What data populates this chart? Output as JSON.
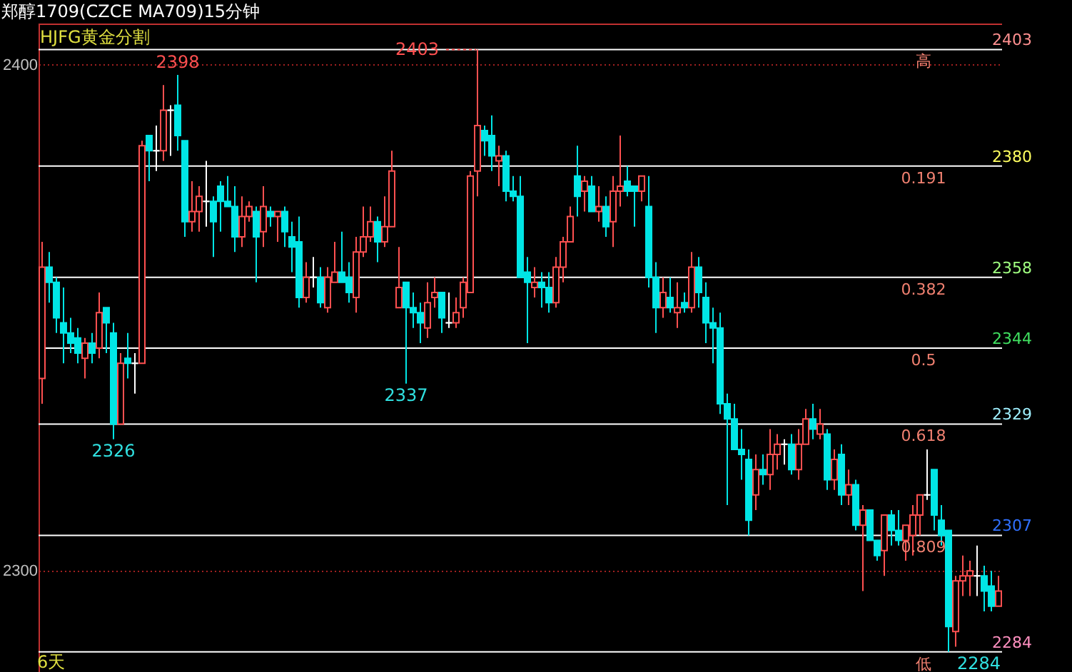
{
  "chart_data": {
    "type": "candlestick",
    "title": "郑醇1709(CZCE MA709)15分钟",
    "subtitle": "HJFG黄金分割",
    "categories": [
      null,
      null,
      null,
      null,
      null,
      null,
      null,
      null,
      null,
      null,
      null,
      null,
      null,
      null,
      null,
      null,
      null,
      null,
      null,
      null,
      null,
      null,
      null,
      null,
      null,
      null,
      null,
      null,
      null,
      null,
      null,
      null,
      null,
      null,
      null,
      null,
      null,
      null,
      null,
      null,
      null,
      null,
      null,
      null,
      null,
      null,
      null,
      null,
      null,
      null,
      null,
      null,
      null,
      null,
      null,
      null,
      null,
      null,
      null,
      null,
      null,
      null,
      null,
      null,
      null,
      null,
      null,
      null,
      null,
      null,
      null,
      null,
      null,
      null,
      null,
      null,
      null,
      null,
      null,
      null,
      null,
      null,
      null,
      null,
      null,
      null,
      null,
      null,
      null,
      null,
      null,
      null,
      null,
      null,
      null,
      null,
      null,
      null,
      null,
      null,
      null,
      null,
      null,
      null,
      null,
      null,
      null,
      null,
      null,
      null,
      null,
      null,
      null,
      null,
      null,
      null,
      null,
      null,
      null,
      null,
      null,
      null,
      null,
      null,
      null,
      null,
      null,
      null,
      null,
      null,
      null,
      null,
      null,
      null,
      null
    ],
    "ohlc": [
      [
        2338,
        2365,
        2333,
        2360
      ],
      [
        2360,
        2363,
        2353,
        2357
      ],
      [
        2357,
        2358,
        2347,
        2350
      ],
      [
        2349,
        2356,
        2341,
        2347
      ],
      [
        2347,
        2350,
        2343,
        2345
      ],
      [
        2346,
        2348,
        2341,
        2343
      ],
      [
        2342,
        2346,
        2338,
        2345
      ],
      [
        2345,
        2347,
        2341,
        2343
      ],
      [
        2344,
        2355,
        2342,
        2351
      ],
      [
        2352,
        2352,
        2343,
        2349
      ],
      [
        2347,
        2349,
        2326,
        2329
      ],
      [
        2329,
        2343,
        2329,
        2341
      ],
      [
        2342,
        2347,
        2338,
        2341
      ],
      [
        2341,
        2343,
        2335,
        2341
      ],
      [
        2341,
        2385,
        2341,
        2384
      ],
      [
        2386,
        2386,
        2377,
        2383
      ],
      [
        2383,
        2388,
        2379,
        2383
      ],
      [
        2383,
        2396,
        2381,
        2391
      ],
      [
        2391,
        2392,
        2382,
        2391
      ],
      [
        2392,
        2398,
        2383,
        2386
      ],
      [
        2385,
        2385,
        2366,
        2369
      ],
      [
        2369,
        2377,
        2367,
        2371
      ],
      [
        2371,
        2376,
        2367,
        2374
      ],
      [
        2373,
        2381,
        2368,
        2373
      ],
      [
        2373,
        2374,
        2362,
        2369
      ],
      [
        2376,
        2377,
        2367,
        2373
      ],
      [
        2373,
        2378,
        2372,
        2372
      ],
      [
        2372,
        2376,
        2363,
        2366
      ],
      [
        2366,
        2374,
        2364,
        2370
      ],
      [
        2370,
        2373,
        2369,
        2372
      ],
      [
        2371,
        2372,
        2357,
        2366
      ],
      [
        2367,
        2376,
        2364,
        2372
      ],
      [
        2371,
        2372,
        2368,
        2370
      ],
      [
        2370,
        2371,
        2365,
        2371
      ],
      [
        2371,
        2372,
        2364,
        2367
      ],
      [
        2366,
        2369,
        2359,
        2364
      ],
      [
        2365,
        2370,
        2352,
        2354
      ],
      [
        2354,
        2361,
        2353,
        2358
      ],
      [
        2358,
        2362,
        2356,
        2358
      ],
      [
        2358,
        2360,
        2352,
        2353
      ],
      [
        2352,
        2360,
        2351,
        2358
      ],
      [
        2357,
        2365,
        2357,
        2359
      ],
      [
        2359,
        2367,
        2357,
        2357
      ],
      [
        2358,
        2361,
        2353,
        2355
      ],
      [
        2354,
        2366,
        2351,
        2363
      ],
      [
        2363,
        2372,
        2362,
        2366
      ],
      [
        2366,
        2372,
        2365,
        2369
      ],
      [
        2369,
        2370,
        2361,
        2365
      ],
      [
        2365,
        2374,
        2364,
        2368
      ],
      [
        2368,
        2383,
        2368,
        2379
      ],
      [
        2352,
        2364,
        2352,
        2356
      ],
      [
        2357,
        2357,
        2337,
        2352
      ],
      [
        2352,
        2355,
        2348,
        2351
      ],
      [
        2351,
        2353,
        2345,
        2349
      ],
      [
        2348,
        2357,
        2346,
        2353
      ],
      [
        2354,
        2358,
        2352,
        2355
      ],
      [
        2355,
        2355,
        2347,
        2350
      ],
      [
        2349,
        2355,
        2348,
        2349
      ],
      [
        2349,
        2354,
        2348,
        2351
      ],
      [
        2352,
        2358,
        2350,
        2357
      ],
      [
        2355,
        2379,
        2355,
        2378
      ],
      [
        2379,
        2403,
        2374,
        2388
      ],
      [
        2387,
        2388,
        2382,
        2385
      ],
      [
        2386,
        2390,
        2379,
        2382
      ],
      [
        2381,
        2384,
        2376,
        2382
      ],
      [
        2382,
        2383,
        2373,
        2375
      ],
      [
        2375,
        2378,
        2373,
        2374
      ],
      [
        2374,
        2378,
        2358,
        2358
      ],
      [
        2359,
        2362,
        2345,
        2357
      ],
      [
        2356,
        2360,
        2354,
        2357
      ],
      [
        2357,
        2359,
        2352,
        2356
      ],
      [
        2356,
        2359,
        2351,
        2353
      ],
      [
        2353,
        2362,
        2352,
        2360
      ],
      [
        2360,
        2366,
        2357,
        2365
      ],
      [
        2365,
        2372,
        2365,
        2370
      ],
      [
        2378,
        2384,
        2370,
        2374
      ],
      [
        2375,
        2378,
        2371,
        2377
      ],
      [
        2376,
        2378,
        2371,
        2371
      ],
      [
        2371,
        2376,
        2369,
        2372
      ],
      [
        2372,
        2374,
        2366,
        2368
      ],
      [
        2369,
        2378,
        2364,
        2375
      ],
      [
        2375,
        2386,
        2372,
        2376
      ],
      [
        2377,
        2380,
        2374,
        2375
      ],
      [
        2376,
        2376,
        2368,
        2375
      ],
      [
        2375,
        2378,
        2373,
        2378
      ],
      [
        2372,
        2378,
        2356,
        2358
      ],
      [
        2358,
        2361,
        2347,
        2352
      ],
      [
        2352,
        2358,
        2350,
        2355
      ],
      [
        2354,
        2358,
        2351,
        2352
      ],
      [
        2351,
        2357,
        2348,
        2352
      ],
      [
        2353,
        2355,
        2351,
        2352
      ],
      [
        2352,
        2363,
        2351,
        2360
      ],
      [
        2360,
        2362,
        2352,
        2355
      ],
      [
        2354,
        2357,
        2345,
        2349
      ],
      [
        2349,
        2352,
        2341,
        2348
      ],
      [
        2348,
        2351,
        2331,
        2333
      ],
      [
        2333,
        2335,
        2313,
        2330
      ],
      [
        2330,
        2333,
        2324,
        2324
      ],
      [
        2324,
        2328,
        2318,
        2323
      ],
      [
        2322,
        2324,
        2307,
        2310
      ],
      [
        2315,
        2323,
        2312,
        2320
      ],
      [
        2320,
        2323,
        2317,
        2319
      ],
      [
        2319,
        2328,
        2316,
        2323
      ],
      [
        2323,
        2327,
        2320,
        2325
      ],
      [
        2325,
        2326,
        2321,
        2325
      ],
      [
        2325,
        2327,
        2319,
        2320
      ],
      [
        2320,
        2328,
        2318,
        2325
      ],
      [
        2325,
        2332,
        2325,
        2330
      ],
      [
        2330,
        2333,
        2326,
        2328
      ],
      [
        2327,
        2332,
        2326,
        2329
      ],
      [
        2327,
        2328,
        2316,
        2318
      ],
      [
        2318,
        2324,
        2316,
        2322
      ],
      [
        2323,
        2325,
        2313,
        2315
      ],
      [
        2315,
        2320,
        2313,
        2317
      ],
      [
        2317,
        2318,
        2308,
        2309
      ],
      [
        2309,
        2313,
        2296,
        2312
      ],
      [
        2312,
        2312,
        2306,
        2306
      ],
      [
        2306,
        2306,
        2302,
        2303
      ],
      [
        2304,
        2311,
        2299,
        2311
      ],
      [
        2311,
        2312,
        2305,
        2308
      ],
      [
        2308,
        2312,
        2305,
        2306
      ],
      [
        2306,
        2309,
        2302,
        2309
      ],
      [
        2307,
        2313,
        2303,
        2311
      ],
      [
        2311,
        2315,
        2307,
        2315
      ],
      [
        2315,
        2324,
        2314,
        2315
      ],
      [
        2320,
        2320,
        2308,
        2311
      ],
      [
        2310,
        2313,
        2305,
        2307
      ],
      [
        2308,
        2308,
        2284,
        2289
      ],
      [
        2288,
        2299,
        2285,
        2298
      ],
      [
        2298,
        2303,
        2295,
        2299
      ],
      [
        2299,
        2302,
        2295,
        2300
      ],
      [
        2299,
        2305,
        2295,
        2299
      ],
      [
        2299,
        2301,
        2292,
        2296
      ],
      [
        2297,
        2300,
        2292,
        2293
      ],
      [
        2293,
        2299,
        2293,
        2296
      ]
    ],
    "colors": [
      "#ff5050",
      "#00e5e5",
      "#00e5e5",
      "#00e5e5",
      "#00e5e5",
      "#00e5e5",
      "#ff5050",
      "#00e5e5",
      "#ff5050",
      "#00e5e5",
      "#00e5e5",
      "#ff5050",
      "#00e5e5",
      "#ffffff",
      "#ff5050",
      "#00e5e5",
      "#ffffff",
      "#ff5050",
      "#ffffff",
      "#00e5e5",
      "#00e5e5",
      "#ff5050",
      "#ff5050",
      "#ffffff",
      "#00e5e5",
      "#00e5e5",
      "#00e5e5",
      "#00e5e5",
      "#ff5050",
      "#ff5050",
      "#00e5e5",
      "#ff5050",
      "#00e5e5",
      "#ff5050",
      "#00e5e5",
      "#00e5e5",
      "#00e5e5",
      "#ff5050",
      "#ffffff",
      "#00e5e5",
      "#ff5050",
      "#ff5050",
      "#00e5e5",
      "#00e5e5",
      "#ff5050",
      "#ff5050",
      "#ff5050",
      "#00e5e5",
      "#ff5050",
      "#ff5050",
      "#ff5050",
      "#00e5e5",
      "#00e5e5",
      "#00e5e5",
      "#ff5050",
      "#ff5050",
      "#00e5e5",
      "#ffffff",
      "#ff5050",
      "#ff5050",
      "#ff5050",
      "#ff5050",
      "#00e5e5",
      "#00e5e5",
      "#ff5050",
      "#00e5e5",
      "#00e5e5",
      "#00e5e5",
      "#00e5e5",
      "#ff5050",
      "#00e5e5",
      "#00e5e5",
      "#ff5050",
      "#ff5050",
      "#ff5050",
      "#00e5e5",
      "#ff5050",
      "#00e5e5",
      "#ff5050",
      "#00e5e5",
      "#ff5050",
      "#ff5050",
      "#00e5e5",
      "#00e5e5",
      "#ff5050",
      "#00e5e5",
      "#00e5e5",
      "#ff5050",
      "#00e5e5",
      "#ff5050",
      "#00e5e5",
      "#ff5050",
      "#00e5e5",
      "#00e5e5",
      "#00e5e5",
      "#00e5e5",
      "#00e5e5",
      "#00e5e5",
      "#00e5e5",
      "#00e5e5",
      "#ff5050",
      "#00e5e5",
      "#ff5050",
      "#ff5050",
      "#ffffff",
      "#00e5e5",
      "#ff5050",
      "#ff5050",
      "#00e5e5",
      "#ff5050",
      "#00e5e5",
      "#ff5050",
      "#00e5e5",
      "#ff5050",
      "#00e5e5",
      "#ff5050",
      "#00e5e5",
      "#00e5e5",
      "#ff5050",
      "#00e5e5",
      "#00e5e5",
      "#ff5050",
      "#ff5050",
      "#ff5050",
      "#ffffff",
      "#00e5e5",
      "#00e5e5",
      "#00e5e5",
      "#ff5050",
      "#ff5050",
      "#ff5050",
      "#ffffff",
      "#00e5e5",
      "#00e5e5",
      "#ff5050"
    ],
    "ylim": [
      2280,
      2408
    ],
    "yticks": [
      2300,
      2400
    ],
    "grid": "y",
    "tick_labels": "y",
    "ref_lines": [
      {
        "axis": "y",
        "value": 2403,
        "label": "2403",
        "color": "#ffffff"
      },
      {
        "axis": "y",
        "value": 2380,
        "label": "2380",
        "color": "#ffffff"
      },
      {
        "axis": "y",
        "value": 2358,
        "label": "2358",
        "color": "#ffffff"
      },
      {
        "axis": "y",
        "value": 2344,
        "label": "2344",
        "color": "#ffffff"
      },
      {
        "axis": "y",
        "value": 2329,
        "label": "2329",
        "color": "#ffffff"
      },
      {
        "axis": "y",
        "value": 2307,
        "label": "2307",
        "color": "#ffffff"
      },
      {
        "axis": "y",
        "value": 2284,
        "label": "2284",
        "color": "#ffffff"
      }
    ],
    "annotations": [
      "2398",
      "2403",
      "2326",
      "2337",
      "2284",
      "6天",
      {
        "text": "高",
        "y": 2403
      },
      {
        "text": "0.191",
        "y": 2380
      },
      {
        "text": "0.382",
        "y": 2358
      },
      {
        "text": "0.5",
        "y": 2344
      },
      {
        "text": "0.618",
        "y": 2329
      },
      {
        "text": "0.809",
        "y": 2307
      },
      {
        "text": "低",
        "y": 2284
      }
    ]
  }
}
